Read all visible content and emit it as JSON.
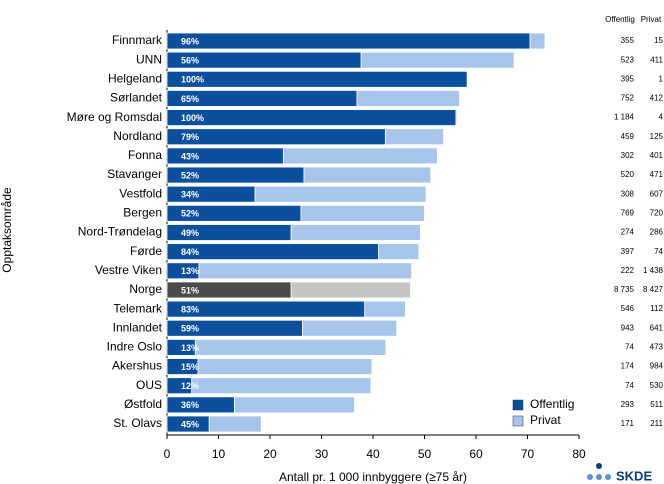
{
  "chart_data": {
    "type": "stacked-barh",
    "y_label": "Opptaksområde",
    "x_label": "Antall pr. 1 000 innbyggere (≥75 år)",
    "categories": [
      "Finnmark",
      "UNN",
      "Helgeland",
      "Sørlandet",
      "Møre og Romsdal",
      "Nordland",
      "Fonna",
      "Stavanger",
      "Vestfold",
      "Bergen",
      "Nord-Trøndelag",
      "Førde",
      "Vestre Viken",
      "Norge",
      "Telemark",
      "Innlandet",
      "Indre Oslo",
      "Akershus",
      "OUS",
      "Østfold",
      "St. Olavs"
    ],
    "series": [
      {
        "name": "Offentlig",
        "color": "#0b4f9d",
        "highlight_color": "#4a4a4a",
        "values": [
          70.5,
          37.7,
          58.3,
          36.9,
          56.1,
          42.4,
          22.6,
          26.6,
          17.1,
          26.0,
          24.1,
          41.1,
          6.2,
          24.1,
          38.4,
          26.3,
          5.5,
          6.0,
          4.8,
          13.1,
          8.2
        ]
      },
      {
        "name": "Privat",
        "color": "#a7c5eb",
        "highlight_color": "#c4c4c4",
        "values": [
          2.9,
          29.7,
          0.1,
          19.9,
          0.2,
          11.3,
          29.9,
          24.6,
          33.2,
          24.0,
          25.1,
          7.8,
          41.3,
          23.2,
          7.9,
          18.3,
          37.0,
          33.8,
          34.8,
          23.3,
          10.1
        ]
      }
    ],
    "percent_labels": [
      "96%",
      "56%",
      "100%",
      "65%",
      "100%",
      "79%",
      "43%",
      "52%",
      "34%",
      "52%",
      "49%",
      "84%",
      "13%",
      "51%",
      "83%",
      "59%",
      "13%",
      "15%",
      "12%",
      "36%",
      "45%"
    ],
    "highlight_index": 13,
    "xlim": [
      0,
      80
    ],
    "xticks": [
      0,
      10,
      20,
      30,
      40,
      50,
      60,
      70,
      80
    ],
    "legend": "lower right"
  },
  "table": {
    "columns": [
      "Offentlig",
      "Privat"
    ],
    "rows": [
      [
        "355",
        "15"
      ],
      [
        "523",
        "411"
      ],
      [
        "395",
        "1"
      ],
      [
        "752",
        "412"
      ],
      [
        "1 184",
        "4"
      ],
      [
        "459",
        "125"
      ],
      [
        "302",
        "401"
      ],
      [
        "520",
        "471"
      ],
      [
        "308",
        "607"
      ],
      [
        "769",
        "720"
      ],
      [
        "274",
        "286"
      ],
      [
        "397",
        "74"
      ],
      [
        "222",
        "1 438"
      ],
      [
        "8 735",
        "8 427"
      ],
      [
        "546",
        "112"
      ],
      [
        "943",
        "641"
      ],
      [
        "74",
        "473"
      ],
      [
        "174",
        "984"
      ],
      [
        "74",
        "530"
      ],
      [
        "293",
        "511"
      ],
      [
        "171",
        "211"
      ]
    ]
  },
  "logo": "SKDE"
}
